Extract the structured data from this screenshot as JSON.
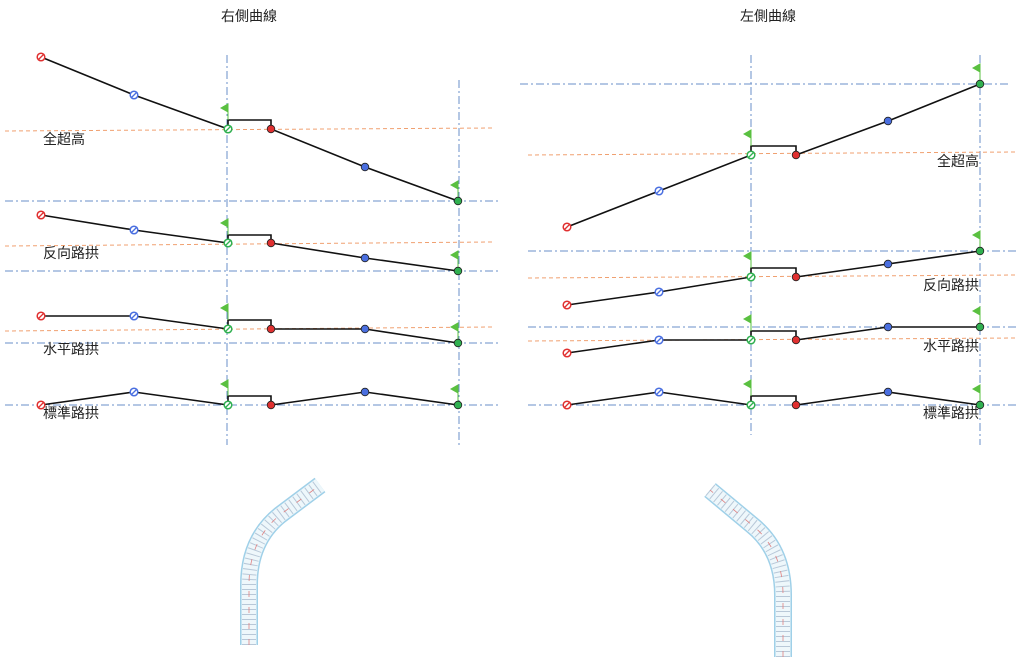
{
  "panels": [
    {
      "title": "右側曲線",
      "labels": [
        "全超高",
        "反向路拱",
        "水平路拱",
        "標準路拱"
      ]
    },
    {
      "title": "左側曲線",
      "labels": [
        "全超高",
        "反向路拱",
        "水平路拱",
        "標準路拱"
      ]
    }
  ]
}
